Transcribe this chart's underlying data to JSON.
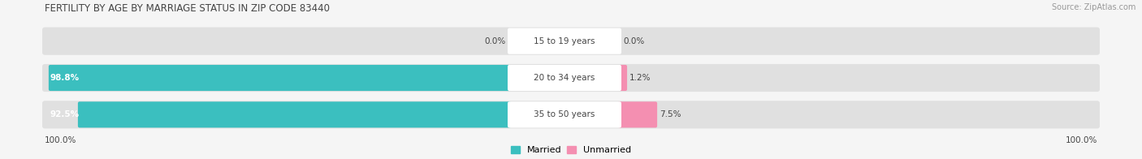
{
  "title": "FERTILITY BY AGE BY MARRIAGE STATUS IN ZIP CODE 83440",
  "source": "Source: ZipAtlas.com",
  "rows": [
    {
      "label": "15 to 19 years",
      "married": 0.0,
      "unmarried": 0.0
    },
    {
      "label": "20 to 34 years",
      "married": 98.8,
      "unmarried": 1.2
    },
    {
      "label": "35 to 50 years",
      "married": 92.5,
      "unmarried": 7.5
    }
  ],
  "married_color": "#3bbfbf",
  "unmarried_color": "#f48fb1",
  "bar_bg_color": "#e0e0e0",
  "label_bg_color": "#ffffff",
  "fig_bg_color": "#f5f5f5",
  "title_color": "#444444",
  "text_color": "#444444",
  "source_color": "#999999",
  "legend_married": "Married",
  "legend_unmarried": "Unmarried",
  "left_axis_label": "100.0%",
  "right_axis_label": "100.0%",
  "figsize": [
    14.06,
    1.96
  ],
  "dpi": 100
}
